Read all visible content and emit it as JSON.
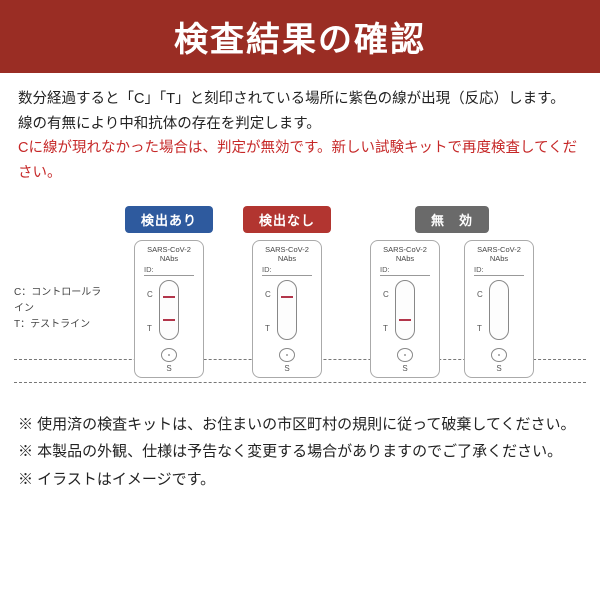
{
  "header": {
    "title": "検査結果の確認"
  },
  "description": {
    "line1": "数分経過すると「C」「T」と刻印されている場所に紫色の線が出現（反応）します。",
    "line2": "線の有無により中和抗体の存在を判定します。",
    "line3": "Cに線が現れなかった場合は、判定が無効です。新しい試験キットで再度検査してください。"
  },
  "badges": {
    "detected": "検出あり",
    "not_detected": "検出なし",
    "invalid": "無　効"
  },
  "lineLabels": {
    "c": "C：コントロールライン",
    "t": "T：テストライン"
  },
  "kit": {
    "title_l1": "SARS-CoV-2",
    "title_l2": "NAbs",
    "id": "ID:",
    "c": "C",
    "t": "T",
    "s": "S"
  },
  "kits": [
    {
      "c": true,
      "t": true,
      "gap": true
    },
    {
      "c": true,
      "t": false,
      "gap": true
    },
    {
      "c": false,
      "t": true,
      "gap": false
    },
    {
      "c": false,
      "t": false,
      "gap": false
    }
  ],
  "notes": {
    "n1": "※ 使用済の検査キットは、お住まいの市区町村の規則に従って破棄してください。",
    "n2": "※ 本製品の外観、仕様は予告なく変更する場合がありますのでご了承ください。",
    "n3": "※ イラストはイメージです。"
  },
  "colors": {
    "header_bg": "#9a2d24",
    "badge_blue": "#2e5a9e",
    "badge_red": "#b23530",
    "badge_gray": "#6a6a6a",
    "test_line": "#b2354a",
    "warn_text": "#c62828"
  }
}
